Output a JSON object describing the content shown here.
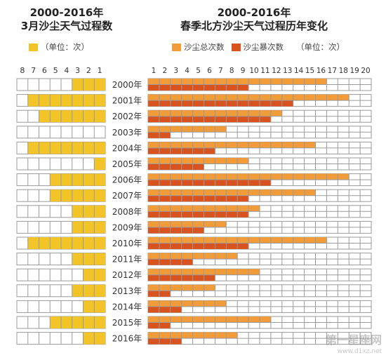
{
  "chart_data": [
    {
      "type": "bar",
      "title": "2000-2016年",
      "subtitle": "3月沙尘天气过程数",
      "unit_label": "（单位：次）",
      "color": "#F2C428",
      "x_ticks": [
        "8",
        "7",
        "6",
        "5",
        "4",
        "3",
        "2",
        "1"
      ],
      "xlim": [
        0,
        8
      ],
      "categories": [
        "2000年",
        "2001年",
        "2002年",
        "2003年",
        "2004年",
        "2005年",
        "2006年",
        "2007年",
        "2008年",
        "2009年",
        "2010年",
        "2011年",
        "2012年",
        "2013年",
        "2014年",
        "2015年",
        "2016年"
      ],
      "values": [
        3,
        7,
        6,
        0,
        7,
        1,
        5,
        5,
        3,
        3,
        7,
        3,
        2,
        3,
        2,
        5,
        2
      ]
    },
    {
      "type": "bar",
      "title": "2000-2016年",
      "subtitle": "春季北方沙尘天气过程历年变化",
      "unit_label": "（单位：次）",
      "x_ticks": [
        "1",
        "2",
        "3",
        "4",
        "5",
        "6",
        "7",
        "8",
        "9",
        "10",
        "11",
        "12",
        "13",
        "14",
        "15",
        "16",
        "17",
        "18",
        "19",
        "20"
      ],
      "xlim": [
        0,
        20
      ],
      "categories": [
        "2000年",
        "2001年",
        "2002年",
        "2003年",
        "2004年",
        "2005年",
        "2006年",
        "2007年",
        "2008年",
        "2009年",
        "2010年",
        "2011年",
        "2012年",
        "2013年",
        "2014年",
        "2015年",
        "2016年"
      ],
      "series": [
        {
          "name": "沙尘总次数",
          "color": "#F19B39",
          "values": [
            16,
            18,
            12,
            7,
            15,
            9,
            18,
            15,
            10,
            7,
            16,
            8,
            10,
            6,
            7,
            11,
            8
          ]
        },
        {
          "name": "沙尘暴次数",
          "color": "#D9531E",
          "values": [
            9,
            13,
            11,
            2,
            6,
            5,
            11,
            9,
            9,
            5,
            9,
            4,
            6,
            2,
            3,
            2,
            3
          ]
        }
      ]
    }
  ]
}
